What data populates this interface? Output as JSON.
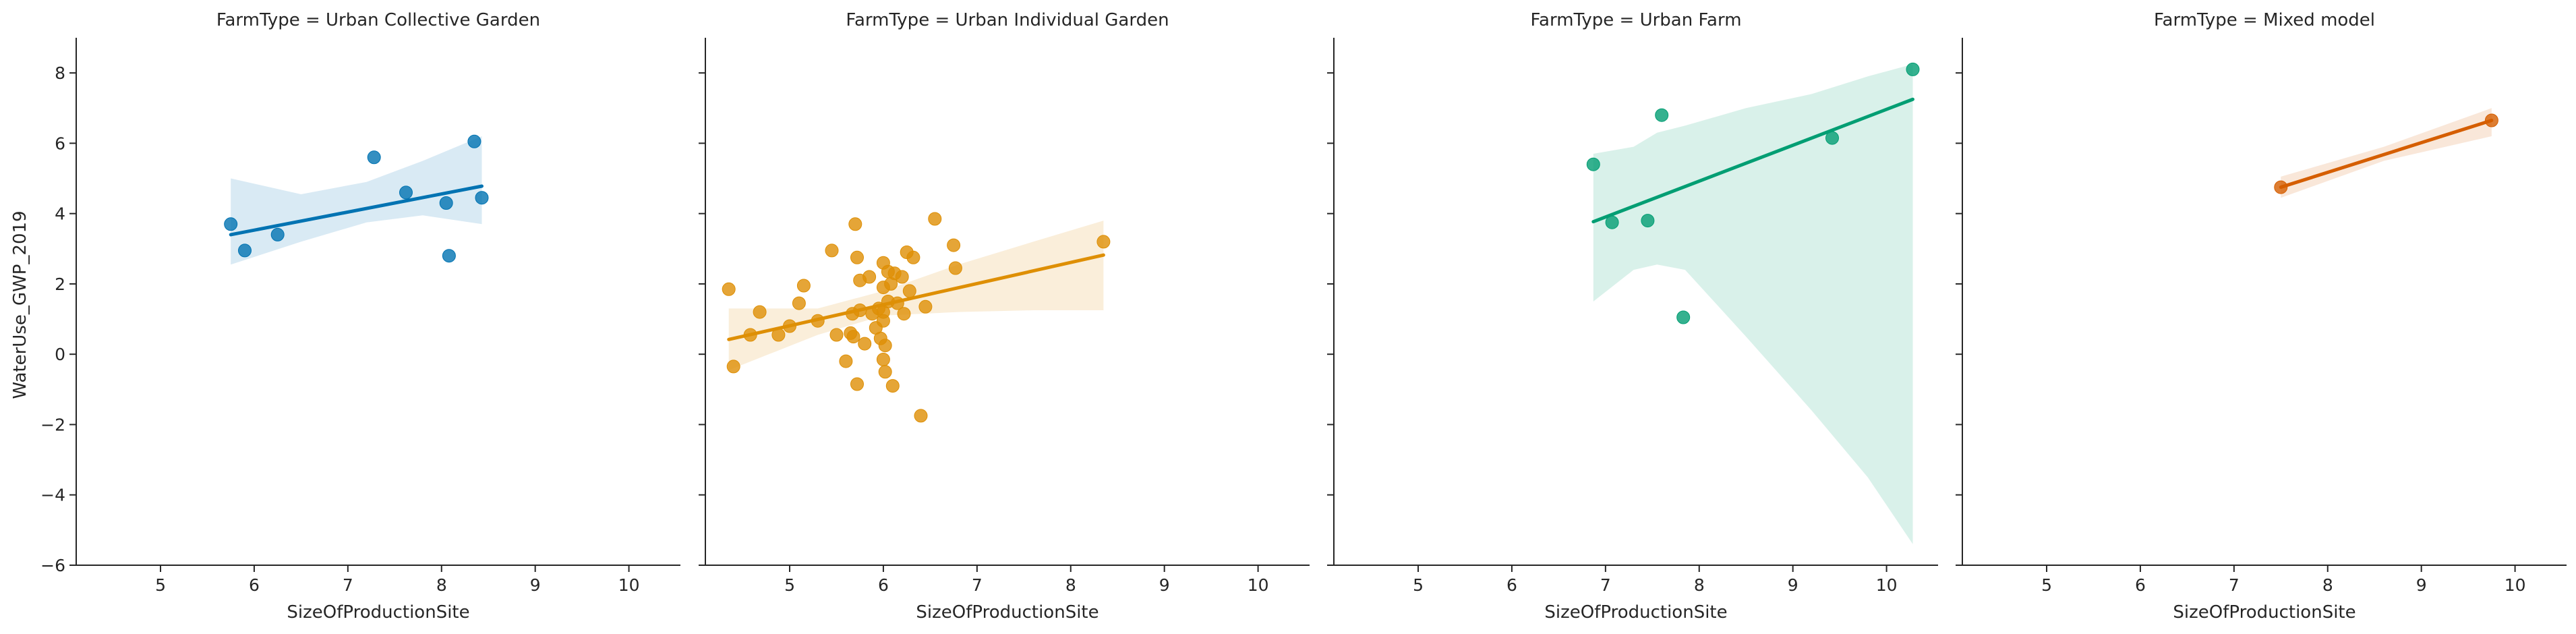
{
  "chart_data": {
    "type": "scatter",
    "ylabel": "WaterUse_GWP_2019",
    "xlim": [
      4.1,
      10.55
    ],
    "ylim": [
      -6,
      9
    ],
    "xticks": [
      5,
      6,
      7,
      8,
      9,
      10
    ],
    "yticks": [
      -6,
      -4,
      -2,
      0,
      2,
      4,
      6,
      8
    ],
    "facets": [
      {
        "title": "FarmType = Urban Collective Garden",
        "xlabel": "SizeOfProductionSite",
        "color": "#0173b2",
        "points": [
          [
            5.75,
            3.7
          ],
          [
            5.9,
            2.95
          ],
          [
            6.25,
            3.4
          ],
          [
            7.28,
            5.6
          ],
          [
            7.62,
            4.6
          ],
          [
            8.05,
            4.3
          ],
          [
            8.08,
            2.8
          ],
          [
            8.35,
            6.05
          ],
          [
            8.43,
            4.45
          ]
        ],
        "fit": {
          "x": [
            5.75,
            8.43
          ],
          "y": [
            3.4,
            4.78
          ]
        },
        "band": {
          "x": [
            5.75,
            6.5,
            7.2,
            7.8,
            8.43
          ],
          "upper": [
            5.0,
            4.55,
            4.9,
            5.5,
            6.2
          ],
          "lower": [
            2.55,
            3.2,
            3.75,
            3.95,
            3.7
          ]
        }
      },
      {
        "title": "FarmType = Urban Individual Garden",
        "xlabel": "SizeOfProductionSite",
        "color": "#de8f05",
        "points": [
          [
            4.35,
            1.85
          ],
          [
            4.4,
            -0.35
          ],
          [
            4.58,
            0.55
          ],
          [
            4.68,
            1.2
          ],
          [
            4.88,
            0.55
          ],
          [
            5.0,
            0.8
          ],
          [
            5.1,
            1.45
          ],
          [
            5.15,
            1.95
          ],
          [
            5.3,
            0.95
          ],
          [
            5.45,
            2.95
          ],
          [
            5.5,
            0.55
          ],
          [
            5.6,
            -0.2
          ],
          [
            5.65,
            0.6
          ],
          [
            5.67,
            1.15
          ],
          [
            5.68,
            0.5
          ],
          [
            5.7,
            3.7
          ],
          [
            5.72,
            2.75
          ],
          [
            5.72,
            -0.85
          ],
          [
            5.75,
            1.25
          ],
          [
            5.75,
            2.1
          ],
          [
            5.8,
            0.3
          ],
          [
            5.85,
            2.2
          ],
          [
            5.88,
            1.15
          ],
          [
            5.92,
            0.75
          ],
          [
            5.95,
            1.3
          ],
          [
            5.97,
            0.45
          ],
          [
            6.0,
            2.6
          ],
          [
            6.0,
            1.9
          ],
          [
            6.0,
            1.2
          ],
          [
            6.0,
            0.95
          ],
          [
            6.0,
            -0.15
          ],
          [
            6.02,
            -0.5
          ],
          [
            6.02,
            0.25
          ],
          [
            6.05,
            1.5
          ],
          [
            6.05,
            2.35
          ],
          [
            6.08,
            2.0
          ],
          [
            6.1,
            -0.9
          ],
          [
            6.12,
            2.3
          ],
          [
            6.15,
            1.45
          ],
          [
            6.2,
            2.2
          ],
          [
            6.22,
            1.15
          ],
          [
            6.25,
            2.9
          ],
          [
            6.28,
            1.8
          ],
          [
            6.32,
            2.75
          ],
          [
            6.4,
            -1.75
          ],
          [
            6.45,
            1.35
          ],
          [
            6.55,
            3.85
          ],
          [
            6.75,
            3.1
          ],
          [
            6.77,
            2.45
          ],
          [
            8.35,
            3.2
          ]
        ],
        "fit": {
          "x": [
            4.35,
            8.35
          ],
          "y": [
            0.42,
            2.82
          ]
        },
        "band": {
          "x": [
            4.35,
            5.3,
            6.0,
            6.8,
            7.6,
            8.35
          ],
          "upper": [
            1.3,
            1.3,
            1.8,
            2.55,
            3.2,
            3.8
          ],
          "lower": [
            -0.45,
            0.55,
            1.1,
            1.2,
            1.25,
            1.25
          ]
        }
      },
      {
        "title": "FarmType = Urban Farm",
        "xlabel": "SizeOfProductionSite",
        "color": "#029e73",
        "points": [
          [
            6.87,
            5.4
          ],
          [
            7.07,
            3.75
          ],
          [
            7.45,
            3.8
          ],
          [
            7.6,
            6.8
          ],
          [
            7.83,
            1.05
          ],
          [
            9.42,
            6.15
          ],
          [
            10.28,
            8.1
          ]
        ],
        "fit": {
          "x": [
            6.87,
            10.28
          ],
          "y": [
            3.77,
            7.25
          ]
        },
        "band": {
          "x": [
            6.87,
            7.3,
            7.55,
            7.85,
            8.5,
            9.2,
            9.8,
            10.28
          ],
          "upper": [
            5.7,
            5.9,
            6.3,
            6.5,
            7.0,
            7.4,
            7.9,
            8.25
          ],
          "lower": [
            1.5,
            2.4,
            2.55,
            2.4,
            0.5,
            -1.6,
            -3.5,
            -5.4
          ]
        }
      },
      {
        "title": "FarmType = Mixed model",
        "xlabel": "SizeOfProductionSite",
        "color": "#d55e00",
        "points": [
          [
            7.5,
            4.75
          ],
          [
            9.75,
            6.65
          ]
        ],
        "fit": {
          "x": [
            7.5,
            9.75
          ],
          "y": [
            4.75,
            6.65
          ]
        },
        "band": {
          "x": [
            7.5,
            8.6,
            9.75
          ],
          "upper": [
            5.05,
            5.9,
            7.0
          ],
          "lower": [
            4.45,
            5.5,
            6.2
          ]
        }
      }
    ]
  }
}
